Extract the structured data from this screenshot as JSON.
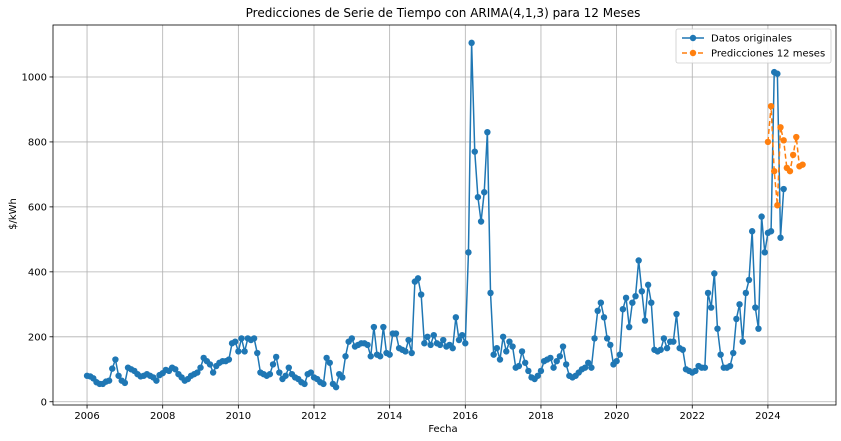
{
  "chart_data": {
    "type": "line",
    "title": "Predicciones de Serie de Tiempo con ARIMA(4,1,3) para 12 Meses",
    "xlabel": "Fecha",
    "ylabel": "$/kWh",
    "xlim": [
      2005.1,
      2025.8
    ],
    "ylim": [
      -10,
      1160
    ],
    "xticks": [
      2006,
      2008,
      2010,
      2012,
      2014,
      2016,
      2018,
      2020,
      2022,
      2024
    ],
    "yticks": [
      0,
      200,
      400,
      600,
      800,
      1000
    ],
    "grid": true,
    "legend_position": "top-right",
    "colors": {
      "original": "#1f77b4",
      "forecast": "#ff7f0e",
      "grid": "#b0b0b0"
    },
    "series": [
      {
        "name": "Datos originales",
        "style": "solid",
        "start_year": 2006.0,
        "step_months": 1,
        "values": [
          80,
          78,
          72,
          60,
          55,
          55,
          62,
          65,
          102,
          130,
          80,
          65,
          58,
          105,
          100,
          95,
          85,
          78,
          80,
          85,
          80,
          75,
          65,
          82,
          88,
          98,
          95,
          105,
          100,
          85,
          75,
          65,
          70,
          80,
          85,
          90,
          105,
          135,
          125,
          115,
          90,
          110,
          120,
          125,
          125,
          130,
          180,
          185,
          155,
          195,
          155,
          195,
          190,
          195,
          150,
          90,
          85,
          80,
          85,
          115,
          138,
          90,
          70,
          80,
          105,
          85,
          75,
          70,
          60,
          55,
          85,
          90,
          75,
          70,
          60,
          55,
          135,
          120,
          55,
          45,
          85,
          75,
          140,
          185,
          195,
          170,
          175,
          180,
          180,
          175,
          140,
          230,
          145,
          140,
          230,
          150,
          145,
          210,
          210,
          165,
          160,
          155,
          190,
          150,
          370,
          380,
          330,
          180,
          200,
          175,
          205,
          180,
          175,
          190,
          170,
          175,
          165,
          260,
          190,
          205,
          180,
          460,
          1105,
          770,
          630,
          555,
          645,
          830,
          335,
          145,
          165,
          130,
          200,
          155,
          185,
          170,
          105,
          110,
          155,
          120,
          95,
          75,
          70,
          80,
          95,
          125,
          130,
          135,
          105,
          125,
          140,
          170,
          115,
          80,
          75,
          80,
          90,
          100,
          105,
          120,
          105,
          195,
          280,
          305,
          260,
          195,
          175,
          115,
          125,
          145,
          285,
          320,
          230,
          305,
          325,
          435,
          340,
          250,
          360,
          305,
          160,
          155,
          160,
          195,
          165,
          185,
          185,
          270,
          165,
          160,
          100,
          95,
          90,
          95,
          110,
          105,
          105,
          335,
          290,
          395,
          225,
          145,
          105,
          105,
          110,
          150,
          255,
          300,
          185,
          335,
          375,
          525,
          290,
          225,
          570,
          460,
          520,
          525,
          1015,
          1010,
          505,
          655
        ]
      },
      {
        "name": "Predicciones 12 meses",
        "style": "dashed",
        "start_year": 2024.0,
        "step_months": 1,
        "values": [
          800,
          910,
          710,
          605,
          845,
          805,
          720,
          710,
          760,
          815,
          725,
          730
        ]
      }
    ]
  }
}
